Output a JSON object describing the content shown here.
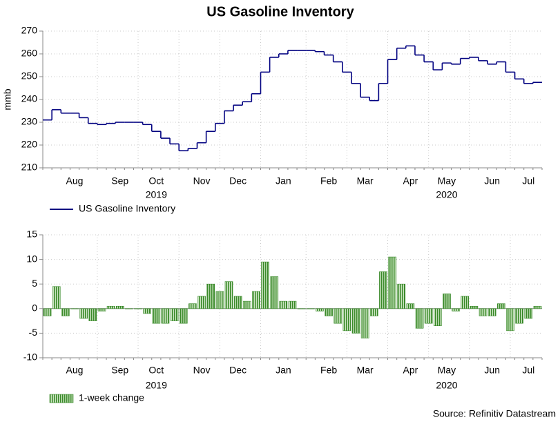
{
  "chart_data": [
    {
      "type": "step",
      "title": "US Gasoline Inventory",
      "ylabel": "mmb",
      "categories": [
        null,
        null,
        null,
        "Aug",
        null,
        null,
        null,
        null,
        "Sep",
        null,
        null,
        null,
        "Oct",
        null,
        null,
        null,
        null,
        "Nov",
        null,
        null,
        null,
        "Dec",
        null,
        null,
        null,
        null,
        "Jan",
        null,
        null,
        null,
        null,
        "Feb",
        null,
        null,
        null,
        "Mar",
        null,
        null,
        null,
        null,
        "Apr",
        null,
        null,
        null,
        "May",
        null,
        null,
        null,
        null,
        "Jun",
        null,
        null,
        null,
        "Jul",
        null
      ],
      "years": [
        "2019",
        "2020"
      ],
      "series": [
        {
          "name": "US Gasoline Inventory",
          "color": "#000080",
          "values": [
            231,
            235.5,
            234,
            234,
            232,
            229.5,
            229,
            229.5,
            230,
            230,
            230,
            229,
            226,
            223,
            220.5,
            217.5,
            218.5,
            221,
            226,
            229.5,
            235,
            237.5,
            239,
            242.5,
            252,
            258.5,
            260,
            261.5,
            261.5,
            261.5,
            261,
            259.5,
            256.5,
            252,
            247,
            241,
            239.5,
            247,
            257.5,
            262.5,
            263.5,
            259.5,
            256.5,
            253,
            256,
            255.5,
            258,
            258.5,
            257,
            255.5,
            256.5,
            252,
            249,
            247,
            247.5
          ]
        }
      ],
      "ylim": [
        210,
        270
      ],
      "yticks": [
        210,
        220,
        230,
        240,
        250,
        260,
        270
      ],
      "grid": true
    },
    {
      "type": "bar",
      "categories": [
        null,
        null,
        null,
        "Aug",
        null,
        null,
        null,
        null,
        "Sep",
        null,
        null,
        null,
        "Oct",
        null,
        null,
        null,
        null,
        "Nov",
        null,
        null,
        null,
        "Dec",
        null,
        null,
        null,
        null,
        "Jan",
        null,
        null,
        null,
        null,
        "Feb",
        null,
        null,
        null,
        "Mar",
        null,
        null,
        null,
        null,
        "Apr",
        null,
        null,
        null,
        "May",
        null,
        null,
        null,
        null,
        "Jun",
        null,
        null,
        null,
        "Jul",
        null
      ],
      "years": [
        "2019",
        "2020"
      ],
      "series": [
        {
          "name": "1-week change",
          "color": "#3a8a2a",
          "values": [
            -1.5,
            4.5,
            -1.5,
            0,
            -2,
            -2.5,
            -0.5,
            0.5,
            0.5,
            0,
            0,
            -1,
            -3,
            -3,
            -2.5,
            -3,
            1,
            2.5,
            5,
            3.5,
            5.5,
            2.5,
            1.5,
            3.5,
            9.5,
            6.5,
            1.5,
            1.5,
            0,
            0,
            -0.5,
            -1.5,
            -3,
            -4.5,
            -5,
            -6,
            -1.5,
            7.5,
            10.5,
            5,
            1,
            -4,
            -3,
            -3.5,
            3,
            -0.5,
            2.5,
            0.5,
            -1.5,
            -1.5,
            1,
            -4.5,
            -3,
            -2,
            0.5
          ]
        }
      ],
      "ylim": [
        -10,
        15
      ],
      "yticks": [
        -10,
        -5,
        0,
        5,
        10,
        15
      ],
      "grid": true,
      "source": "Source: Refinitiv Datastream"
    }
  ]
}
